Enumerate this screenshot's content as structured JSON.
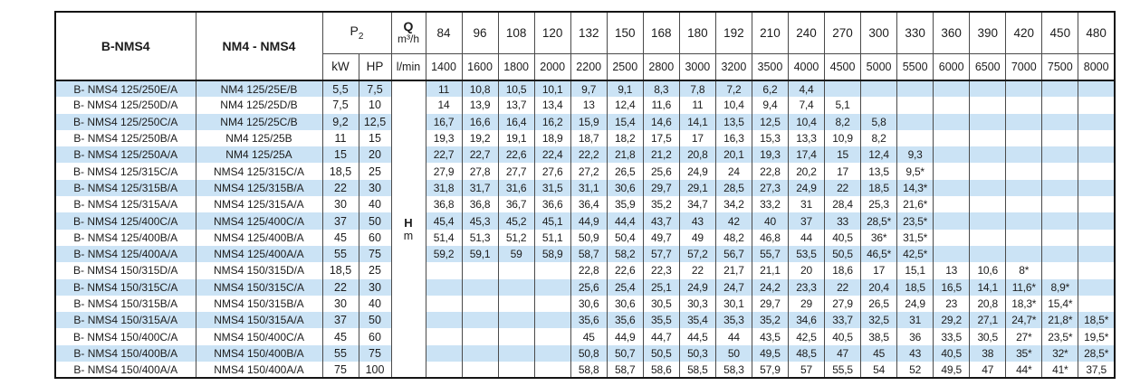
{
  "colors": {
    "stripe": "#cbe3f5",
    "grid": "#4a4a4a",
    "frame": "#141414"
  },
  "table": {
    "col1_header": "B-NMS4",
    "col2_header": "NM4 - NMS4",
    "p2": {
      "main": "P",
      "sub": "2"
    },
    "p2_units": [
      "kW",
      "HP"
    ],
    "q": {
      "label": "Q",
      "unit": "m³/h",
      "unit2": "l/min"
    },
    "hm": {
      "label": "H",
      "unit": "m"
    },
    "flow_m3h": [
      "84",
      "96",
      "108",
      "120",
      "132",
      "150",
      "168",
      "180",
      "192",
      "210",
      "240",
      "270",
      "300",
      "330",
      "360",
      "390",
      "420",
      "450",
      "480"
    ],
    "flow_lmin": [
      "1400",
      "1600",
      "1800",
      "2000",
      "2200",
      "2500",
      "2800",
      "3000",
      "3200",
      "3500",
      "4000",
      "4500",
      "5000",
      "5500",
      "6000",
      "6500",
      "7000",
      "7500",
      "8000"
    ],
    "rows": [
      {
        "b": "B- NMS4 125/250E/A",
        "n": "NM4 125/25E/B",
        "kw": "5,5",
        "hp": "7,5",
        "v": [
          "11",
          "10,8",
          "10,5",
          "10,1",
          "9,7",
          "9,1",
          "8,3",
          "7,8",
          "7,2",
          "6,2",
          "4,4",
          "",
          "",
          "",
          "",
          "",
          "",
          "",
          ""
        ]
      },
      {
        "b": "B- NMS4 125/250D/A",
        "n": "NM4 125/25D/B",
        "kw": "7,5",
        "hp": "10",
        "v": [
          "14",
          "13,9",
          "13,7",
          "13,4",
          "13",
          "12,4",
          "11,6",
          "11",
          "10,4",
          "9,4",
          "7,4",
          "5,1",
          "",
          "",
          "",
          "",
          "",
          "",
          ""
        ]
      },
      {
        "b": "B- NMS4 125/250C/A",
        "n": "NM4 125/25C/B",
        "kw": "9,2",
        "hp": "12,5",
        "v": [
          "16,7",
          "16,6",
          "16,4",
          "16,2",
          "15,9",
          "15,4",
          "14,6",
          "14,1",
          "13,5",
          "12,5",
          "10,4",
          "8,2",
          "5,8",
          "",
          "",
          "",
          "",
          "",
          ""
        ]
      },
      {
        "b": "B- NMS4 125/250B/A",
        "n": "NM4 125/25B",
        "kw": "11",
        "hp": "15",
        "v": [
          "19,3",
          "19,2",
          "19,1",
          "18,9",
          "18,7",
          "18,2",
          "17,5",
          "17",
          "16,3",
          "15,3",
          "13,3",
          "10,9",
          "8,2",
          "",
          "",
          "",
          "",
          "",
          ""
        ]
      },
      {
        "b": "B- NMS4 125/250A/A",
        "n": "NM4 125/25A",
        "kw": "15",
        "hp": "20",
        "v": [
          "22,7",
          "22,7",
          "22,6",
          "22,4",
          "22,2",
          "21,8",
          "21,2",
          "20,8",
          "20,1",
          "19,3",
          "17,4",
          "15",
          "12,4",
          "9,3",
          "",
          "",
          "",
          "",
          ""
        ]
      },
      {
        "b": "B- NMS4 125/315C/A",
        "n": "NMS4 125/315C/A",
        "kw": "18,5",
        "hp": "25",
        "v": [
          "27,9",
          "27,8",
          "27,7",
          "27,6",
          "27,2",
          "26,5",
          "25,6",
          "24,9",
          "24",
          "22,8",
          "20,2",
          "17",
          "13,5",
          "9,5*",
          "",
          "",
          "",
          "",
          ""
        ]
      },
      {
        "b": "B- NMS4 125/315B/A",
        "n": "NMS4 125/315B/A",
        "kw": "22",
        "hp": "30",
        "v": [
          "31,8",
          "31,7",
          "31,6",
          "31,5",
          "31,1",
          "30,6",
          "29,7",
          "29,1",
          "28,5",
          "27,3",
          "24,9",
          "22",
          "18,5",
          "14,3*",
          "",
          "",
          "",
          "",
          ""
        ]
      },
      {
        "b": "B- NMS4 125/315A/A",
        "n": "NMS4 125/315A/A",
        "kw": "30",
        "hp": "40",
        "v": [
          "36,8",
          "36,8",
          "36,7",
          "36,6",
          "36,4",
          "35,9",
          "35,2",
          "34,7",
          "34,2",
          "33,2",
          "31",
          "28,4",
          "25,3",
          "21,6*",
          "",
          "",
          "",
          "",
          ""
        ]
      },
      {
        "b": "B- NMS4 125/400C/A",
        "n": "NMS4 125/400C/A",
        "kw": "37",
        "hp": "50",
        "v": [
          "45,4",
          "45,3",
          "45,2",
          "45,1",
          "44,9",
          "44,4",
          "43,7",
          "43",
          "42",
          "40",
          "37",
          "33",
          "28,5*",
          "23,5*",
          "",
          "",
          "",
          "",
          ""
        ]
      },
      {
        "b": "B- NMS4 125/400B/A",
        "n": "NMS4 125/400B/A",
        "kw": "45",
        "hp": "60",
        "v": [
          "51,4",
          "51,3",
          "51,2",
          "51,1",
          "50,9",
          "50,4",
          "49,7",
          "49",
          "48,2",
          "46,8",
          "44",
          "40,5",
          "36*",
          "31,5*",
          "",
          "",
          "",
          "",
          ""
        ]
      },
      {
        "b": "B- NMS4 125/400A/A",
        "n": "NMS4 125/400A/A",
        "kw": "55",
        "hp": "75",
        "v": [
          "59,2",
          "59,1",
          "59",
          "58,9",
          "58,7",
          "58,2",
          "57,7",
          "57,2",
          "56,7",
          "55,7",
          "53,5",
          "50,5",
          "46,5*",
          "42,5*",
          "",
          "",
          "",
          "",
          ""
        ]
      },
      {
        "b": "B- NMS4 150/315D/A",
        "n": "NMS4 150/315D/A",
        "kw": "18,5",
        "hp": "25",
        "v": [
          "",
          "",
          "",
          "",
          "22,8",
          "22,6",
          "22,3",
          "22",
          "21,7",
          "21,1",
          "20",
          "18,6",
          "17",
          "15,1",
          "13",
          "10,6",
          "8*",
          "",
          ""
        ]
      },
      {
        "b": "B- NMS4 150/315C/A",
        "n": "NMS4 150/315C/A",
        "kw": "22",
        "hp": "30",
        "v": [
          "",
          "",
          "",
          "",
          "25,6",
          "25,4",
          "25,1",
          "24,9",
          "24,7",
          "24,2",
          "23,3",
          "22",
          "20,4",
          "18,5",
          "16,5",
          "14,1",
          "11,6*",
          "8,9*",
          ""
        ]
      },
      {
        "b": "B- NMS4 150/315B/A",
        "n": "NMS4 150/315B/A",
        "kw": "30",
        "hp": "40",
        "v": [
          "",
          "",
          "",
          "",
          "30,6",
          "30,6",
          "30,5",
          "30,3",
          "30,1",
          "29,7",
          "29",
          "27,9",
          "26,5",
          "24,9",
          "23",
          "20,8",
          "18,3*",
          "15,4*",
          ""
        ]
      },
      {
        "b": "B- NMS4 150/315A/A",
        "n": "NMS4 150/315A/A",
        "kw": "37",
        "hp": "50",
        "v": [
          "",
          "",
          "",
          "",
          "35,6",
          "35,6",
          "35,5",
          "35,4",
          "35,3",
          "35,2",
          "34,6",
          "33,7",
          "32,5",
          "31",
          "29,2",
          "27,1",
          "24,7*",
          "21,8*",
          "18,5*"
        ]
      },
      {
        "b": "B- NMS4 150/400C/A",
        "n": "NMS4 150/400C/A",
        "kw": "45",
        "hp": "60",
        "v": [
          "",
          "",
          "",
          "",
          "45",
          "44,9",
          "44,7",
          "44,5",
          "44",
          "43,5",
          "42,5",
          "40,5",
          "38,5",
          "36",
          "33,5",
          "30,5",
          "27*",
          "23,5*",
          "19,5*"
        ]
      },
      {
        "b": "B- NMS4 150/400B/A",
        "n": "NMS4 150/400B/A",
        "kw": "55",
        "hp": "75",
        "v": [
          "",
          "",
          "",
          "",
          "50,8",
          "50,7",
          "50,5",
          "50,3",
          "50",
          "49,5",
          "48,5",
          "47",
          "45",
          "43",
          "40,5",
          "38",
          "35*",
          "32*",
          "28,5*"
        ]
      },
      {
        "b": "B- NMS4 150/400A/A",
        "n": "NMS4 150/400A/A",
        "kw": "75",
        "hp": "100",
        "v": [
          "",
          "",
          "",
          "",
          "58,8",
          "58,7",
          "58,6",
          "58,5",
          "58,3",
          "57,9",
          "57",
          "55,5",
          "54",
          "52",
          "49,5",
          "47",
          "44*",
          "41*",
          "37,5"
        ]
      }
    ]
  }
}
